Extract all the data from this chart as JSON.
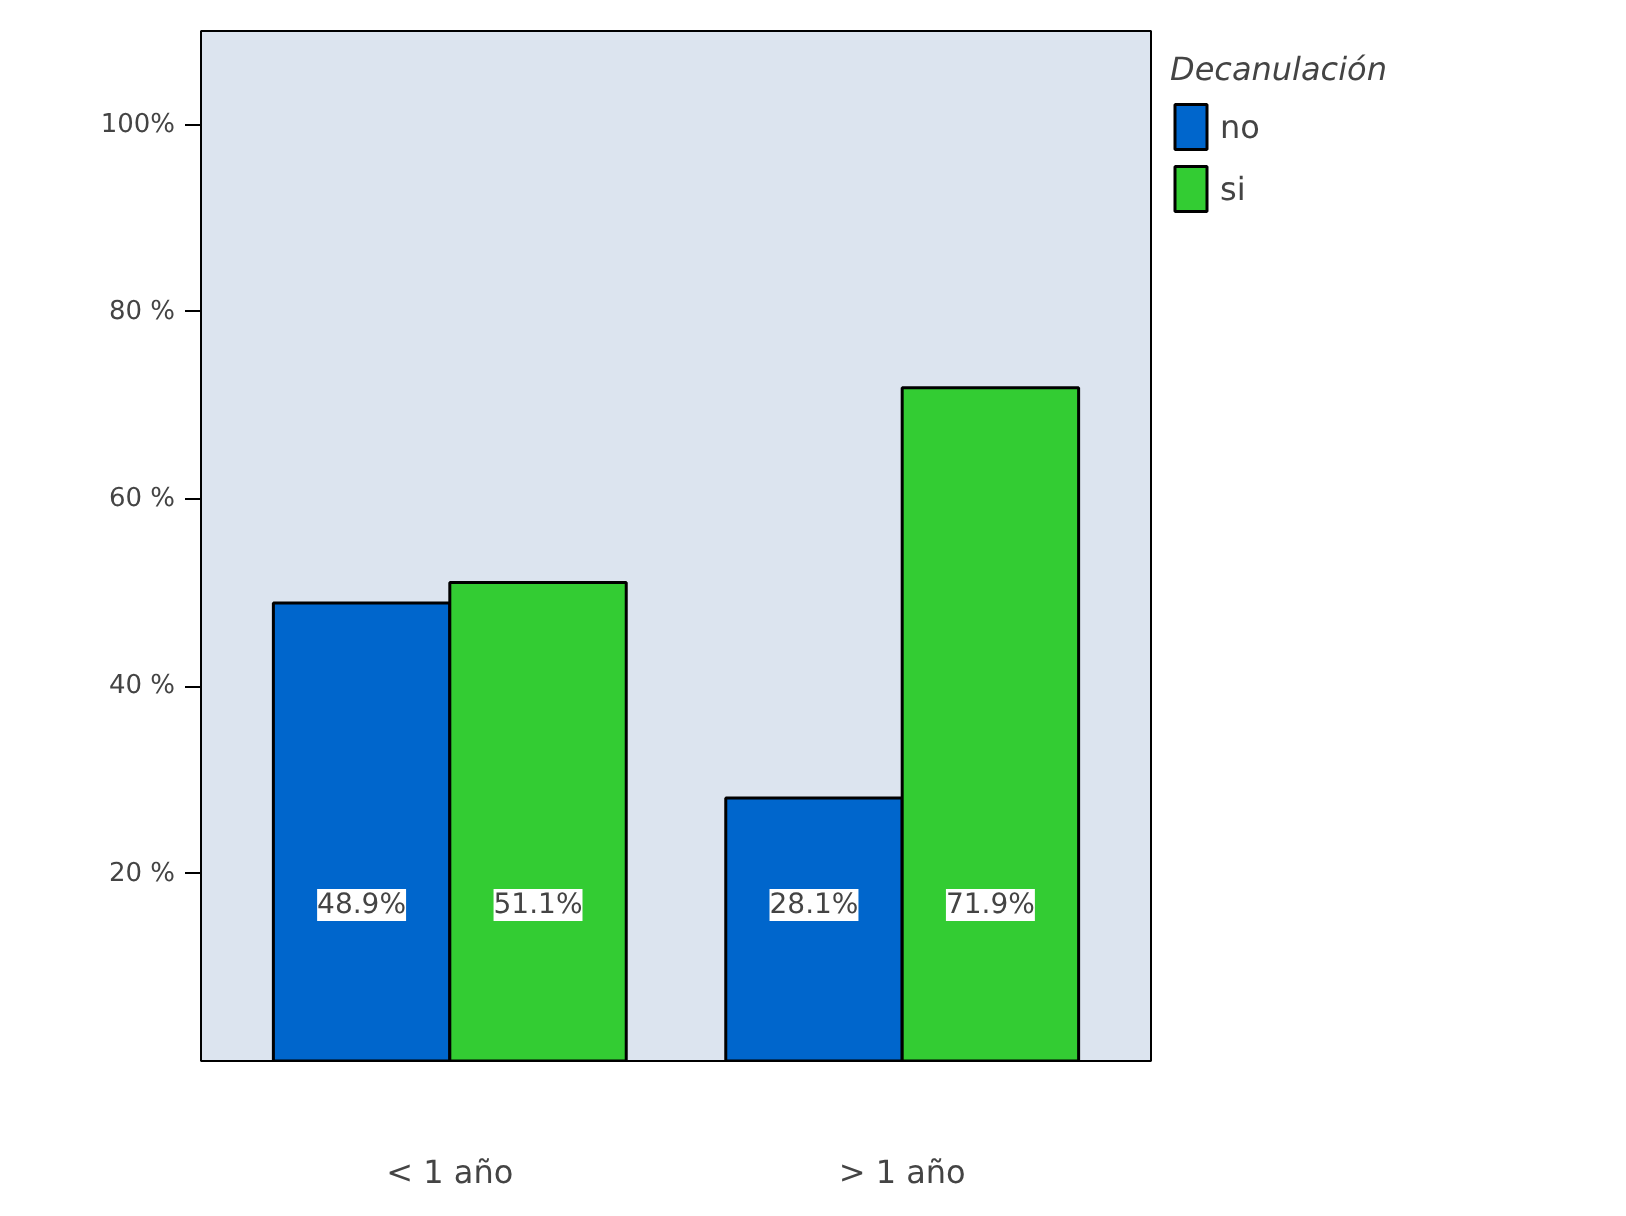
{
  "chart_data": {
    "type": "bar",
    "categories": [
      "< 1 año",
      "> 1 año"
    ],
    "series": [
      {
        "name": "no",
        "color": "#0066cc",
        "values": [
          48.9,
          28.1
        ],
        "value_labels": [
          "48.9%",
          "28.1%"
        ]
      },
      {
        "name": "si",
        "color": "#33cc33",
        "values": [
          51.1,
          71.9
        ],
        "value_labels": [
          "51.1%",
          "71.9%"
        ]
      }
    ],
    "ylim": [
      0,
      110
    ],
    "yticks": [
      {
        "value": 20,
        "label": "20 %"
      },
      {
        "value": 40,
        "label": "40 %"
      },
      {
        "value": 60,
        "label": "60 %"
      },
      {
        "value": 80,
        "label": "80 %"
      },
      {
        "value": 100,
        "label": "100%"
      }
    ],
    "legend_title": "Decanulación",
    "legend": "top right",
    "grid": false
  }
}
